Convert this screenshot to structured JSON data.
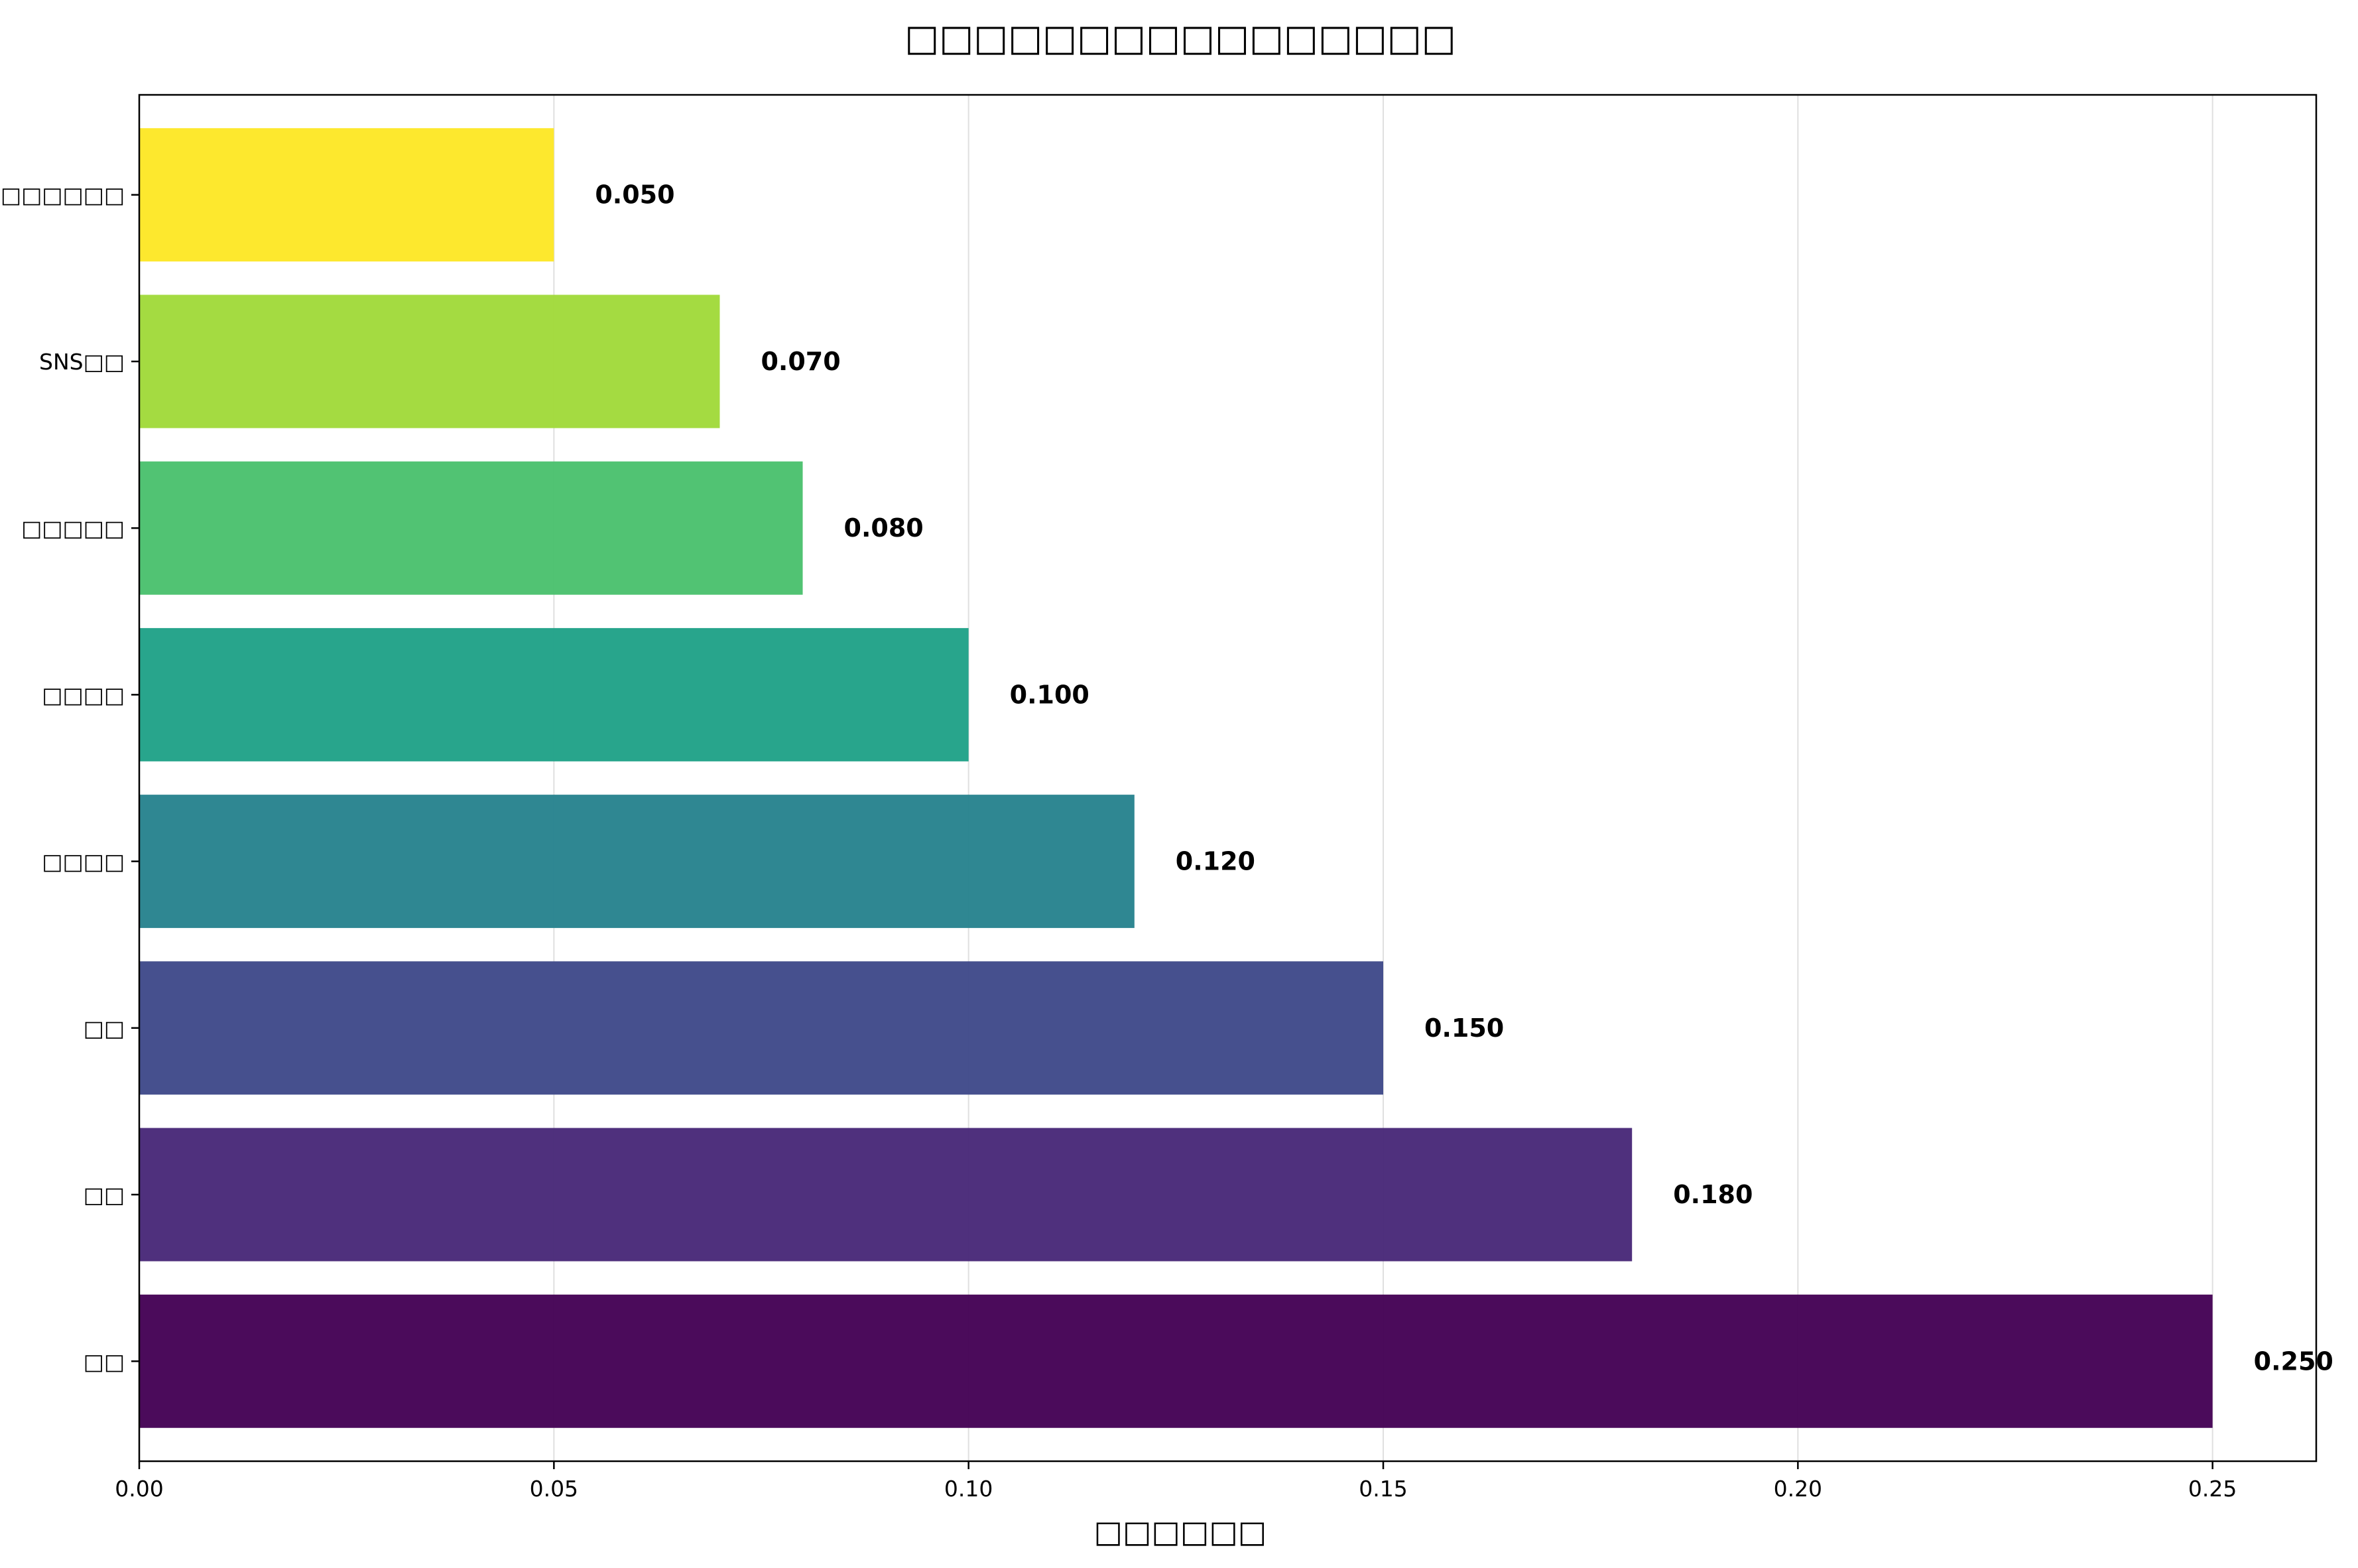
{
  "chart_data": {
    "type": "bar",
    "orientation": "horizontal",
    "title": "□□□□□□□□□□□□□□□□",
    "xlabel": "□□□□□□",
    "ylabel": "",
    "categories": [
      "□□",
      "□□",
      "□□",
      "□□□□",
      "□□□□",
      "□□□□□",
      "SNS□□",
      "□□□□□□"
    ],
    "values": [
      0.25,
      0.18,
      0.15,
      0.12,
      0.1,
      0.08,
      0.07,
      0.05
    ],
    "value_labels": [
      "0.250",
      "0.180",
      "0.150",
      "0.120",
      "0.100",
      "0.080",
      "0.070",
      "0.050"
    ],
    "colors": [
      "#440154",
      "#482878",
      "#3e4989",
      "#26828e",
      "#1fa187",
      "#4ac16d",
      "#a0da39",
      "#fde725"
    ],
    "xlim": [
      0,
      0.2625
    ],
    "xticks": [
      0.0,
      0.05,
      0.1,
      0.15,
      0.2,
      0.25
    ],
    "xtick_labels": [
      "0.00",
      "0.05",
      "0.10",
      "0.15",
      "0.20",
      "0.25"
    ],
    "grid": "vertical"
  }
}
